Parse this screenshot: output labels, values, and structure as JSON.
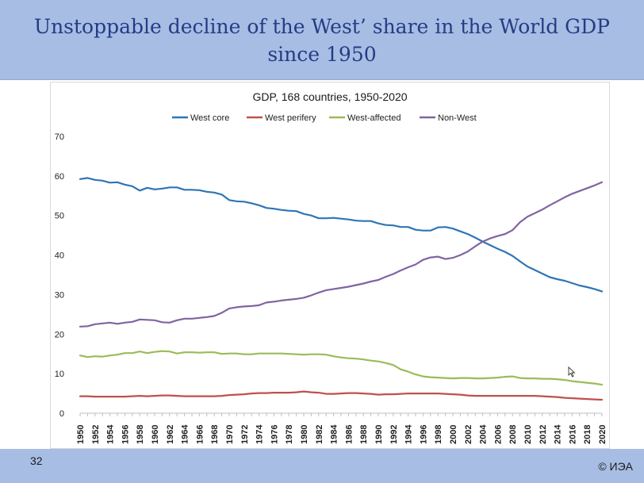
{
  "slide": {
    "title_line1": "Unstoppable decline of the West’ share in the World GDP",
    "title_line2": "since 1950",
    "page_number": "32",
    "copyright": "© ИЭА",
    "colors": {
      "header": "#a7bde3",
      "title": "#243c86"
    }
  },
  "chart_data": {
    "type": "line",
    "title": "GDP, 168 countries, 1950-2020",
    "xlabel": "",
    "ylabel": "",
    "ylim": [
      0,
      70
    ],
    "yticks": [
      0,
      10,
      20,
      30,
      40,
      50,
      60,
      70
    ],
    "grid": false,
    "legend_position": "top",
    "x": [
      1950,
      1951,
      1952,
      1953,
      1954,
      1955,
      1956,
      1957,
      1958,
      1959,
      1960,
      1961,
      1962,
      1963,
      1964,
      1965,
      1966,
      1967,
      1968,
      1969,
      1970,
      1971,
      1972,
      1973,
      1974,
      1975,
      1976,
      1977,
      1978,
      1979,
      1980,
      1981,
      1982,
      1983,
      1984,
      1985,
      1986,
      1987,
      1988,
      1989,
      1990,
      1991,
      1992,
      1993,
      1994,
      1995,
      1996,
      1997,
      1998,
      1999,
      2000,
      2001,
      2002,
      2003,
      2004,
      2005,
      2006,
      2007,
      2008,
      2009,
      2010,
      2011,
      2012,
      2013,
      2014,
      2015,
      2016,
      2017,
      2018,
      2019,
      2020
    ],
    "xtick_labels": [
      "1950",
      "1952",
      "1954",
      "1956",
      "1958",
      "1960",
      "1962",
      "1964",
      "1966",
      "1968",
      "1970",
      "1972",
      "1974",
      "1976",
      "1978",
      "1980",
      "1982",
      "1984",
      "1986",
      "1988",
      "1990",
      "1992",
      "1994",
      "1996",
      "1998",
      "2000",
      "2002",
      "2004",
      "2006",
      "2008",
      "2010",
      "2012",
      "2014",
      "2016",
      "2018",
      "2020"
    ],
    "series": [
      {
        "name": "West core",
        "color": "#2e75b6",
        "values": [
          59.2,
          59.5,
          59.0,
          58.8,
          58.3,
          58.4,
          57.8,
          57.4,
          56.3,
          57.0,
          56.6,
          56.8,
          57.1,
          57.1,
          56.5,
          56.5,
          56.4,
          56.0,
          55.8,
          55.3,
          53.9,
          53.6,
          53.5,
          53.1,
          52.6,
          51.9,
          51.7,
          51.4,
          51.2,
          51.1,
          50.4,
          50.0,
          49.3,
          49.3,
          49.4,
          49.2,
          49.0,
          48.7,
          48.6,
          48.6,
          48.0,
          47.6,
          47.5,
          47.1,
          47.1,
          46.4,
          46.2,
          46.2,
          47.0,
          47.1,
          46.7,
          46.0,
          45.3,
          44.4,
          43.4,
          42.5,
          41.6,
          40.8,
          39.8,
          38.4,
          37.1,
          36.2,
          35.3,
          34.4,
          33.9,
          33.5,
          32.9,
          32.3,
          31.9,
          31.4,
          30.8
        ]
      },
      {
        "name": "West perifery",
        "color": "#c0504d",
        "values": [
          4.3,
          4.3,
          4.2,
          4.2,
          4.2,
          4.2,
          4.2,
          4.3,
          4.4,
          4.3,
          4.4,
          4.5,
          4.5,
          4.4,
          4.3,
          4.3,
          4.3,
          4.3,
          4.3,
          4.4,
          4.6,
          4.7,
          4.8,
          5.0,
          5.1,
          5.1,
          5.2,
          5.2,
          5.2,
          5.3,
          5.5,
          5.3,
          5.2,
          4.9,
          4.9,
          5.0,
          5.1,
          5.1,
          5.0,
          4.9,
          4.7,
          4.8,
          4.8,
          4.9,
          5.0,
          5.0,
          5.0,
          5.0,
          5.0,
          4.9,
          4.8,
          4.7,
          4.5,
          4.4,
          4.4,
          4.4,
          4.4,
          4.4,
          4.4,
          4.4,
          4.4,
          4.4,
          4.3,
          4.2,
          4.1,
          3.9,
          3.8,
          3.7,
          3.6,
          3.5,
          3.4
        ]
      },
      {
        "name": "West-affected",
        "color": "#9bbb59",
        "values": [
          14.6,
          14.2,
          14.4,
          14.3,
          14.6,
          14.8,
          15.2,
          15.2,
          15.6,
          15.2,
          15.5,
          15.7,
          15.6,
          15.1,
          15.4,
          15.4,
          15.3,
          15.4,
          15.4,
          15.0,
          15.1,
          15.1,
          14.9,
          14.9,
          15.1,
          15.1,
          15.1,
          15.1,
          15.0,
          14.9,
          14.8,
          14.9,
          14.9,
          14.8,
          14.4,
          14.1,
          13.9,
          13.8,
          13.6,
          13.3,
          13.1,
          12.7,
          12.2,
          11.1,
          10.5,
          9.8,
          9.3,
          9.1,
          9.0,
          8.9,
          8.8,
          8.9,
          8.9,
          8.8,
          8.8,
          8.9,
          9.0,
          9.2,
          9.3,
          8.9,
          8.8,
          8.8,
          8.7,
          8.7,
          8.6,
          8.4,
          8.1,
          7.9,
          7.7,
          7.5,
          7.2
        ]
      },
      {
        "name": "Non-West",
        "color": "#8064a2",
        "values": [
          21.9,
          22.0,
          22.5,
          22.7,
          22.9,
          22.6,
          22.9,
          23.1,
          23.7,
          23.6,
          23.5,
          23.0,
          22.9,
          23.5,
          23.9,
          23.9,
          24.1,
          24.3,
          24.6,
          25.4,
          26.5,
          26.8,
          27.0,
          27.1,
          27.3,
          28.0,
          28.2,
          28.5,
          28.7,
          28.9,
          29.2,
          29.8,
          30.5,
          31.1,
          31.4,
          31.7,
          32.0,
          32.4,
          32.8,
          33.3,
          33.7,
          34.5,
          35.2,
          36.1,
          36.9,
          37.6,
          38.8,
          39.4,
          39.6,
          39.0,
          39.3,
          40.0,
          40.9,
          42.2,
          43.4,
          44.2,
          44.8,
          45.3,
          46.3,
          48.3,
          49.7,
          50.6,
          51.5,
          52.6,
          53.6,
          54.6,
          55.5,
          56.2,
          56.9,
          57.6,
          58.4
        ]
      }
    ]
  }
}
